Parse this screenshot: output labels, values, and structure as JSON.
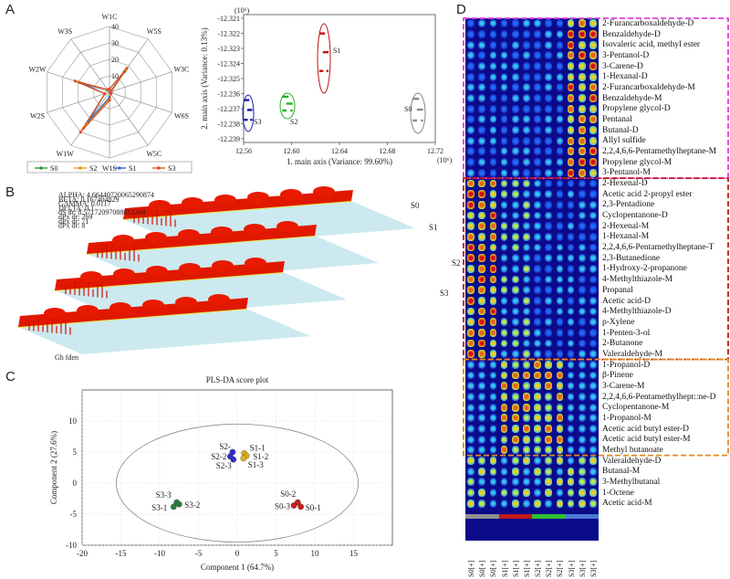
{
  "panels": {
    "a": "A",
    "b": "B",
    "c": "C",
    "d": "D"
  },
  "radar": {
    "axes": [
      "W1C",
      "W5S",
      "W3C",
      "W6S",
      "W5C",
      "W1S",
      "W1W",
      "W2S",
      "W2W",
      "W3S"
    ],
    "rings": [
      "0",
      "10",
      "20",
      "30",
      "40"
    ],
    "rmax": 40,
    "series": [
      {
        "name": "S0",
        "color": "#2e9a2e",
        "values": [
          2,
          16,
          1,
          1,
          1,
          4,
          24,
          3,
          19,
          2
        ]
      },
      {
        "name": "S2",
        "color": "#e0a020",
        "values": [
          2,
          17,
          1,
          1,
          1,
          4,
          27,
          3,
          20,
          2
        ]
      },
      {
        "name": "S1",
        "color": "#3a6ec8",
        "values": [
          2,
          15,
          1,
          1,
          1,
          3,
          22,
          3,
          17,
          2
        ]
      },
      {
        "name": "S3",
        "color": "#e05020",
        "values": [
          2,
          18,
          1,
          1,
          1,
          5,
          30,
          3,
          22,
          2
        ]
      }
    ]
  },
  "pca": {
    "xlabel": "1. main axis (Variance: 99.60%)",
    "ylabel": "2. main axis (Variance: 0.13%)",
    "xexp": "(10⁶)",
    "yexp": "(10⁶)",
    "xticks": [
      "12.56",
      "12.60",
      "12.64",
      "12.68",
      "12.72"
    ],
    "yticks": [
      "-12.321",
      "-12.322",
      "-12.323",
      "-12.324",
      "-12.325",
      "-12.236",
      "-12.237",
      "-12.238",
      "-12.239"
    ],
    "groups": [
      {
        "name": "S3",
        "color": "#1a1ab0"
      },
      {
        "name": "S2",
        "color": "#22b022"
      },
      {
        "name": "S1",
        "color": "#c01010"
      },
      {
        "name": "S0",
        "color": "#888888"
      }
    ]
  },
  "gc": {
    "labels": [
      "S0",
      "S1",
      "S2",
      "S3"
    ],
    "legend": [
      "ALPHA: 4.66440720065290874",
      "BETA: 0.167404829",
      "GAMMA: 0.0117",
      "DELTA: 0.1",
      "dS dr: 8.57172097088053264",
      "dPx dr: 269",
      "dPx dr: 71",
      "dPx dr: 8"
    ],
    "footnote": "Gh fden"
  },
  "chart_data": {
    "type": "scatter",
    "title": "PLS-DA score plot",
    "xlabel": "Component 1 (64.7%)",
    "ylabel": "Component 2 (27.6%)",
    "xlim": [
      -20,
      20
    ],
    "ylim": [
      -10,
      15
    ],
    "xticks": [
      "-20",
      "-15",
      "-10",
      "-5",
      "0",
      "5",
      "10",
      "15"
    ],
    "yticks": [
      "-10",
      "-5",
      "0",
      "5",
      "10"
    ],
    "series": [
      {
        "name": "S2",
        "color": "#3030c8",
        "points": [
          {
            "label": "S2-",
            "x": -0.6,
            "y": 5.0
          },
          {
            "label": "S2-2",
            "x": -0.9,
            "y": 4.3
          },
          {
            "label": "S2-3",
            "x": -0.5,
            "y": 3.8
          }
        ]
      },
      {
        "name": "S1",
        "color": "#d4b020",
        "points": [
          {
            "label": "S1-1",
            "x": 0.9,
            "y": 4.8
          },
          {
            "label": "S1-2",
            "x": 1.2,
            "y": 4.4
          },
          {
            "label": "S1-3",
            "x": 0.8,
            "y": 4.0
          }
        ]
      },
      {
        "name": "S3",
        "color": "#2e7a3e",
        "points": [
          {
            "label": "S3-3",
            "x": -7.8,
            "y": -3.1
          },
          {
            "label": "S3-1",
            "x": -8.2,
            "y": -3.8
          },
          {
            "label": "S3-2",
            "x": -7.5,
            "y": -3.4
          }
        ]
      },
      {
        "name": "S0",
        "color": "#c82020",
        "points": [
          {
            "label": "S0-2",
            "x": 7.8,
            "y": -3.1
          },
          {
            "label": "S0-3",
            "x": 7.3,
            "y": -3.6
          },
          {
            "label": "S0-1",
            "x": 8.2,
            "y": -3.8
          }
        ]
      }
    ]
  },
  "heatmap": {
    "compounds": [
      "2-Furancarboxaldehyde-D",
      "Benzaldehyde-D",
      "Isovaleric acid, methyl ester",
      "3-Pentanol-D",
      "3-Carene-D",
      "1-Hexanal-D",
      "2-Furancarboxaldehyde-M",
      "Benzaldehyde-M",
      "Propylene glycol-D",
      "Pentanal",
      "Butanal-D",
      "Allyl sulfide",
      "2,2,4,6,6-Pentamethylheptane-M",
      "Propylene glycol-M",
      "3-Pentanol-M",
      "2-Hexenal-D",
      "Acetic acid 2-propyl ester",
      "2,3-Pentadione",
      "Cyclopentanone-D",
      "2-Hexenal-M",
      "1-Hexanal-M",
      "2,2,4,6,6-Pentamethylheptane-T",
      "2,3-Butanedione",
      "1-Hydroxy-2-propanone",
      "4-Methylthiazole-M",
      "Propanal",
      "Acetic acid-D",
      "4-Methylthiazole-D",
      "p-Xylene",
      "1-Penten-3-ol",
      "2-Butanone",
      "Valeraldehyde-M",
      "1-Propanol-D",
      "β-Pinene",
      "3-Carene-M",
      "2,2,4,6,6-Pentamethylhept::ne-D",
      "Cyclopentanone-M",
      "1-Propanol-M",
      "Acetic acid butyl ester-D",
      "Acetic acid butyl ester-M",
      "Methyl butanoate",
      "Valeraldehyde-D",
      "Butanal-M",
      "3-Methylbutanal",
      "1-Octene",
      "Acetic acid-M"
    ],
    "samples": [
      "S0[+]",
      "S0[+]",
      "S0[+]",
      "S1[+]",
      "S1[+]",
      "S1[+]",
      "S2[+]",
      "S2[+]",
      "S2[+]",
      "S3[+]",
      "S3[+]",
      "S3[+]"
    ],
    "sample_colors": [
      "#909090",
      "#c01818",
      "#30c030",
      "#4a7ad0"
    ],
    "box_colors": [
      "#e040e0",
      "#c01818",
      "#e08a20"
    ]
  }
}
